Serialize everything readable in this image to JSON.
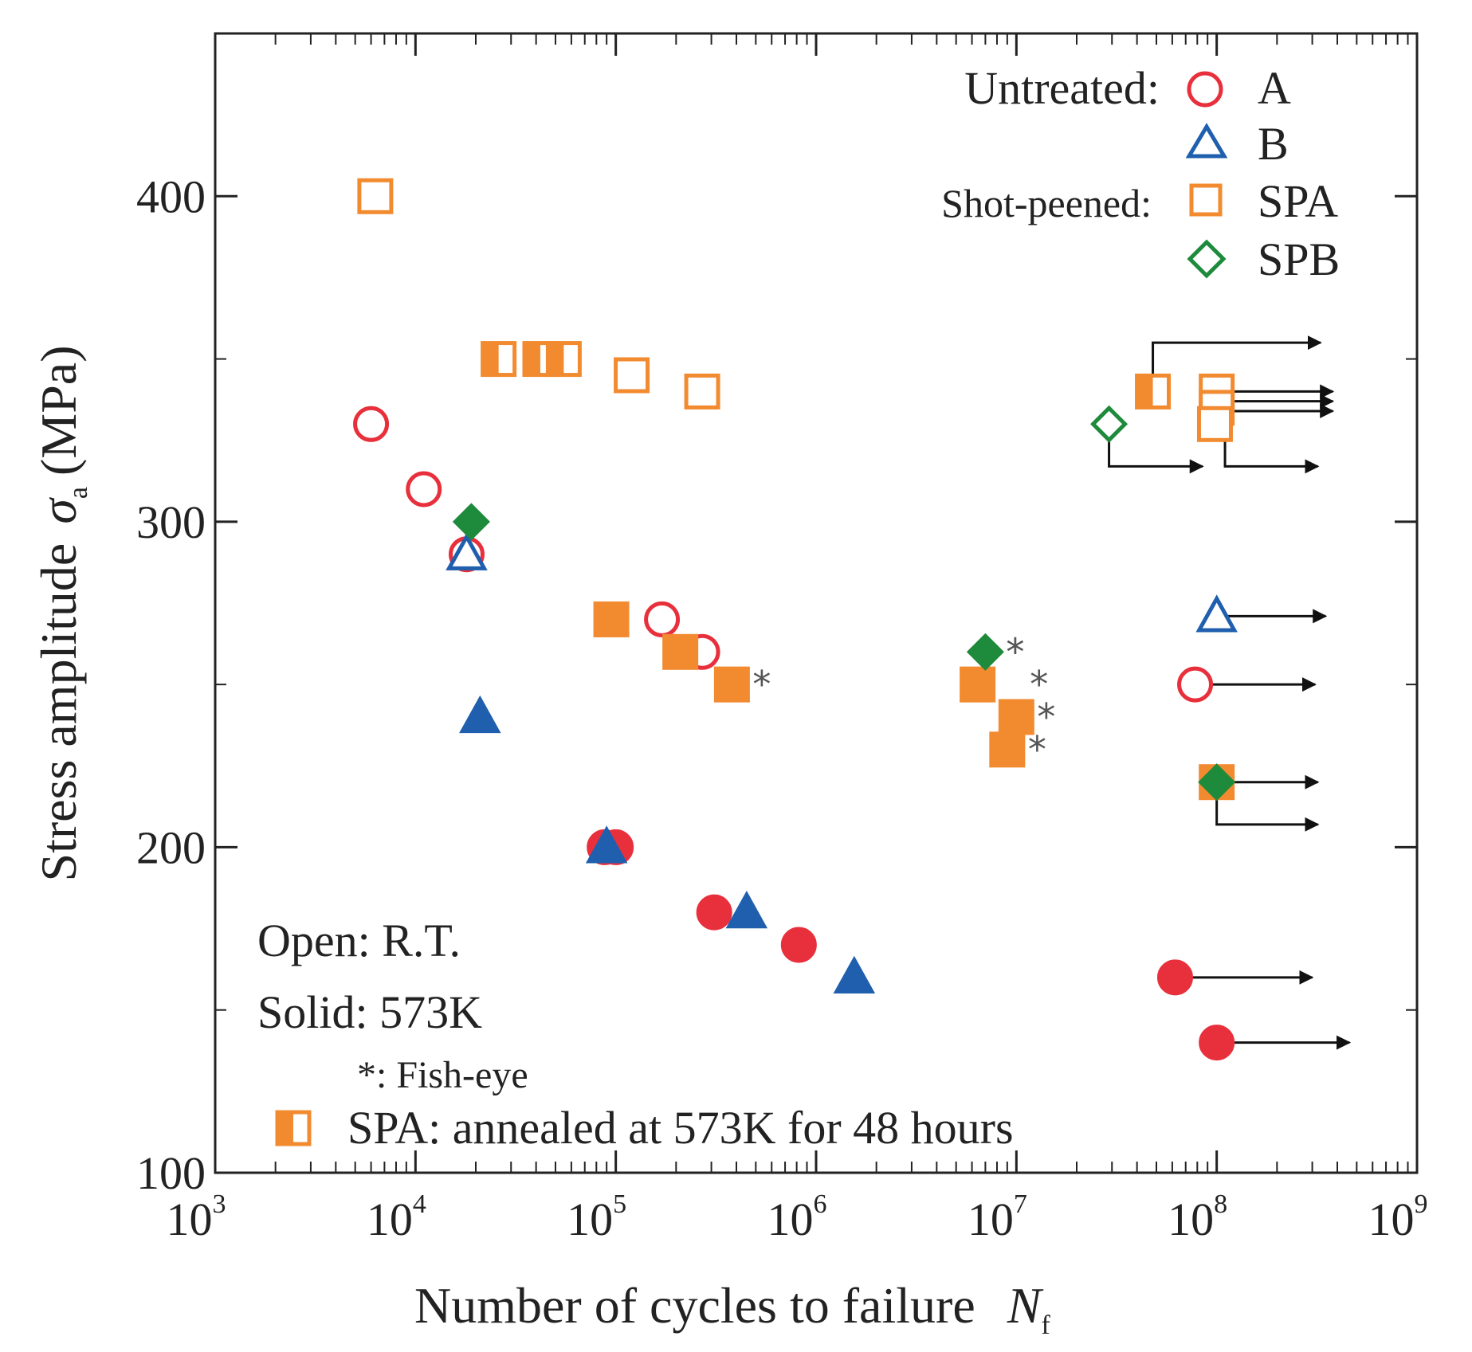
{
  "chart_data": {
    "type": "scatter",
    "title": "",
    "xlabel": "Number of cycles to failure",
    "xlabel_symbol": "N",
    "xlabel_subscript": "f",
    "ylabel": "Stress amplitude",
    "ylabel_symbol": "σ",
    "ylabel_subscript": "a",
    "ylabel_unit": "(MPa)",
    "x_scale": "log",
    "xlim": [
      1000,
      1000000000
    ],
    "ylim": [
      100,
      450
    ],
    "x_ticks": [
      {
        "base": "10",
        "exp": "3",
        "value": 1000
      },
      {
        "base": "10",
        "exp": "4",
        "value": 10000
      },
      {
        "base": "10",
        "exp": "5",
        "value": 100000
      },
      {
        "base": "10",
        "exp": "6",
        "value": 1000000
      },
      {
        "base": "10",
        "exp": "7",
        "value": 10000000
      },
      {
        "base": "10",
        "exp": "8",
        "value": 100000000
      },
      {
        "base": "10",
        "exp": "9",
        "value": 1000000000
      }
    ],
    "y_ticks": [
      {
        "label": "100",
        "value": 100
      },
      {
        "label": "200",
        "value": 200
      },
      {
        "label": "300",
        "value": 300
      },
      {
        "label": "400",
        "value": 400
      }
    ],
    "legend": {
      "placement": "top-right",
      "group_untreated": "Untreated:",
      "group_shot_peened": "Shot-peened:",
      "entries": [
        {
          "label": "A",
          "marker": "circle",
          "color": "#e8303c"
        },
        {
          "label": "B",
          "marker": "triangle",
          "color": "#1f5fae"
        },
        {
          "label": "SPA",
          "marker": "square",
          "color": "#f28a30"
        },
        {
          "label": "SPB",
          "marker": "diamond",
          "color": "#1e8a3c"
        }
      ]
    },
    "notes": {
      "open": "Open: R.T.",
      "solid": "Solid: 573K",
      "fisheye_symbol": "*",
      "fisheye_label": ": Fish-eye",
      "annealed": "SPA: annealed at 573K for 48 hours"
    },
    "series": [
      {
        "name": "A",
        "marker": "circle",
        "color": "#e8303c",
        "points": [
          {
            "x": 6000,
            "y": 330,
            "fill": "open"
          },
          {
            "x": 11000,
            "y": 310,
            "fill": "open"
          },
          {
            "x": 18000,
            "y": 290,
            "fill": "open"
          },
          {
            "x": 170000,
            "y": 270,
            "fill": "open"
          },
          {
            "x": 270000,
            "y": 260,
            "fill": "open"
          },
          {
            "x": 78000000,
            "y": 250,
            "fill": "open",
            "runout": true
          },
          {
            "x": 88000,
            "y": 200,
            "fill": "solid"
          },
          {
            "x": 100000,
            "y": 200,
            "fill": "solid"
          },
          {
            "x": 310000,
            "y": 180,
            "fill": "solid"
          },
          {
            "x": 820000,
            "y": 170,
            "fill": "solid"
          },
          {
            "x": 62000000,
            "y": 160,
            "fill": "solid",
            "runout": true
          },
          {
            "x": 100000000,
            "y": 140,
            "fill": "solid",
            "runout": true
          }
        ]
      },
      {
        "name": "B",
        "marker": "triangle",
        "color": "#1f5fae",
        "points": [
          {
            "x": 18000,
            "y": 290,
            "fill": "open"
          },
          {
            "x": 100000000,
            "y": 271,
            "fill": "open",
            "runout": true
          },
          {
            "x": 21000,
            "y": 240,
            "fill": "solid"
          },
          {
            "x": 90000,
            "y": 200,
            "fill": "solid"
          },
          {
            "x": 450000,
            "y": 180,
            "fill": "solid"
          },
          {
            "x": 1550000,
            "y": 160,
            "fill": "solid"
          }
        ]
      },
      {
        "name": "SPA",
        "marker": "square",
        "color": "#f28a30",
        "points": [
          {
            "x": 6300,
            "y": 400,
            "fill": "open"
          },
          {
            "x": 120000,
            "y": 345,
            "fill": "open"
          },
          {
            "x": 270000,
            "y": 340,
            "fill": "open"
          },
          {
            "x": 100000000,
            "y": 340,
            "fill": "open",
            "runout": true
          },
          {
            "x": 100000000,
            "y": 335,
            "fill": "open",
            "runout": true
          },
          {
            "x": 98000000,
            "y": 330,
            "fill": "open",
            "runout": true
          },
          {
            "x": 26000,
            "y": 350,
            "fill": "annealed"
          },
          {
            "x": 42000,
            "y": 350,
            "fill": "annealed"
          },
          {
            "x": 55000,
            "y": 350,
            "fill": "annealed"
          },
          {
            "x": 48000000,
            "y": 340,
            "fill": "annealed",
            "runout": true
          },
          {
            "x": 95000,
            "y": 270,
            "fill": "solid"
          },
          {
            "x": 210000,
            "y": 260,
            "fill": "solid"
          },
          {
            "x": 380000,
            "y": 250,
            "fill": "solid",
            "fisheye": true
          },
          {
            "x": 6400000,
            "y": 250,
            "fill": "solid"
          },
          {
            "x": 10000000,
            "y": 240,
            "fill": "solid",
            "fisheye": true
          },
          {
            "x": 9000000,
            "y": 230,
            "fill": "solid",
            "fisheye": true
          },
          {
            "x": 100000000,
            "y": 220,
            "fill": "solid",
            "runout": true
          }
        ]
      },
      {
        "name": "SPB",
        "marker": "diamond",
        "color": "#1e8a3c",
        "points": [
          {
            "x": 29000000,
            "y": 330,
            "fill": "open",
            "runout": true
          },
          {
            "x": 19000,
            "y": 300,
            "fill": "solid"
          },
          {
            "x": 7000000,
            "y": 260,
            "fill": "solid",
            "fisheye": true
          },
          {
            "x": 100000000,
            "y": 220,
            "fill": "solid",
            "runout": true
          }
        ]
      }
    ],
    "fisheye_marks": [
      {
        "x": 7000000,
        "y": 260
      },
      {
        "x": 9200000,
        "y": 250
      }
    ],
    "runouts": [
      {
        "x": 48000000,
        "y": 340,
        "to_x": 330000000,
        "to_y": 355
      },
      {
        "x": 100000000,
        "y": 340,
        "to_x": 380000000,
        "to_y": 340
      },
      {
        "x": 100000000,
        "y": 335,
        "to_x": 380000000,
        "to_y": 337
      },
      {
        "x": 100000000,
        "y": 335,
        "to_x": 380000000,
        "to_y": 334
      },
      {
        "x": 29000000,
        "y": 330,
        "to_x": 85000000,
        "to_y": 317
      },
      {
        "x": 110000000,
        "y": 330,
        "to_x": 320000000,
        "to_y": 317
      },
      {
        "x": 100000000,
        "y": 271,
        "to_x": 350000000,
        "to_y": 271
      },
      {
        "x": 78000000,
        "y": 250,
        "to_x": 310000000,
        "to_y": 250
      },
      {
        "x": 100000000,
        "y": 220,
        "to_x": 320000000,
        "to_y": 220
      },
      {
        "x": 100000000,
        "y": 220,
        "to_x": 320000000,
        "to_y": 207
      },
      {
        "x": 62000000,
        "y": 160,
        "to_x": 300000000,
        "to_y": 160
      },
      {
        "x": 100000000,
        "y": 140,
        "to_x": 460000000,
        "to_y": 140
      }
    ]
  }
}
